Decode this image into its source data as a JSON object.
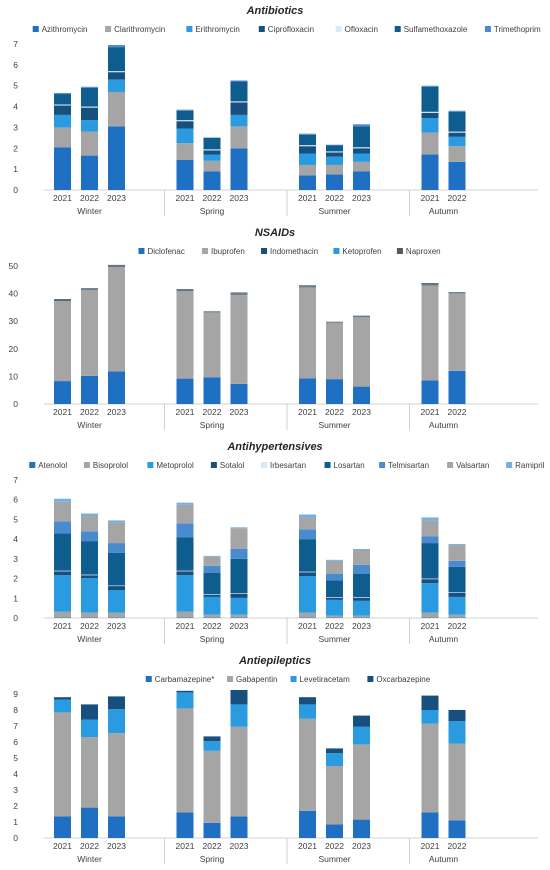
{
  "chart_data": [
    {
      "type": "bar",
      "title": "Antibiotics",
      "ylim": [
        0,
        7
      ],
      "yticks": [
        0,
        1,
        2,
        3,
        4,
        5,
        6,
        7
      ],
      "groups": [
        {
          "label": "Winter",
          "categories": [
            "2021",
            "2022",
            "2023"
          ]
        },
        {
          "label": "Spring",
          "categories": [
            "2021",
            "2022",
            "2023"
          ]
        },
        {
          "label": "Summer",
          "categories": [
            "2021",
            "2022",
            "2023"
          ]
        },
        {
          "label": "Autumn",
          "categories": [
            "2021",
            "2022"
          ]
        }
      ],
      "categories": [
        "2021",
        "2022",
        "2023",
        "2021",
        "2022",
        "2023",
        "2021",
        "2022",
        "2023",
        "2021",
        "2022"
      ],
      "series": [
        {
          "name": "Azithromycin",
          "color": "#1f6fc2",
          "values": [
            2.05,
            1.65,
            3.05,
            1.45,
            0.9,
            2.0,
            0.7,
            0.75,
            0.9,
            1.7,
            1.35
          ]
        },
        {
          "name": "Clarithromycin",
          "color": "#a5a5a5",
          "values": [
            0.95,
            1.15,
            1.65,
            0.8,
            0.5,
            1.05,
            0.5,
            0.45,
            0.45,
            1.05,
            0.75
          ]
        },
        {
          "name": "Erithromycin",
          "color": "#2a9be0",
          "values": [
            0.6,
            0.55,
            0.6,
            0.7,
            0.3,
            0.55,
            0.55,
            0.4,
            0.4,
            0.7,
            0.45
          ]
        },
        {
          "name": "Ciprofloxacin",
          "color": "#174f7f",
          "values": [
            0.45,
            0.6,
            0.35,
            0.35,
            0.2,
            0.6,
            0.35,
            0.2,
            0.25,
            0.25,
            0.2
          ]
        },
        {
          "name": "Ofloxacin",
          "color": "#d6eaf8",
          "values": [
            0.05,
            0.05,
            0.05,
            0.05,
            0.05,
            0.05,
            0.05,
            0.05,
            0.05,
            0.05,
            0.05
          ]
        },
        {
          "name": "Sulfamethoxazole",
          "color": "#0f5d8f",
          "values": [
            0.5,
            0.9,
            1.15,
            0.45,
            0.55,
            0.95,
            0.5,
            0.3,
            1.0,
            1.2,
            0.95
          ]
        },
        {
          "name": "Trimethoprim",
          "color": "#4a8bd0",
          "values": [
            0.05,
            0.05,
            0.1,
            0.05,
            0.02,
            0.05,
            0.05,
            0.02,
            0.1,
            0.05,
            0.05
          ]
        }
      ]
    },
    {
      "type": "bar",
      "title": "NSAIDs",
      "ylim": [
        0,
        50
      ],
      "yticks": [
        0,
        10,
        20,
        30,
        40,
        50
      ],
      "groups": [
        {
          "label": "Winter",
          "categories": [
            "2021",
            "2022",
            "2023"
          ]
        },
        {
          "label": "Spring",
          "categories": [
            "2021",
            "2022",
            "2023"
          ]
        },
        {
          "label": "Summer",
          "categories": [
            "2021",
            "2022",
            "2023"
          ]
        },
        {
          "label": "Autumn",
          "categories": [
            "2021",
            "2022"
          ]
        }
      ],
      "categories": [
        "2021",
        "2022",
        "2023",
        "2021",
        "2022",
        "2023",
        "2021",
        "2022",
        "2023",
        "2021",
        "2022"
      ],
      "series": [
        {
          "name": "Diclofenac",
          "color": "#1f6fc2",
          "values": [
            8.3,
            10.2,
            11.8,
            9.2,
            9.7,
            7.3,
            9.3,
            9.0,
            6.3,
            8.5,
            12.0
          ]
        },
        {
          "name": "Ibuprofen",
          "color": "#a5a5a5",
          "values": [
            29.0,
            31.3,
            38.0,
            31.7,
            23.5,
            32.4,
            33.0,
            20.4,
            25.2,
            34.5,
            28.0
          ]
        },
        {
          "name": "Indomethacin",
          "color": "#174f7f",
          "values": [
            0.2,
            0.2,
            0.2,
            0.2,
            0.1,
            0.2,
            0.2,
            0.1,
            0.1,
            0.2,
            0.1
          ]
        },
        {
          "name": "Ketoprofen",
          "color": "#2a9be0",
          "values": [
            0.1,
            0.1,
            0.1,
            0.1,
            0.1,
            0.1,
            0.1,
            0.1,
            0.1,
            0.1,
            0.1
          ]
        },
        {
          "name": "Naproxen",
          "color": "#595959",
          "values": [
            0.4,
            0.2,
            0.3,
            0.4,
            0.2,
            0.4,
            0.4,
            0.2,
            0.3,
            0.5,
            0.3
          ]
        }
      ]
    },
    {
      "type": "bar",
      "title": "Antihypertensives",
      "ylim": [
        0,
        7
      ],
      "yticks": [
        0,
        1,
        2,
        3,
        4,
        5,
        6,
        7
      ],
      "groups": [
        {
          "label": "Winter",
          "categories": [
            "2021",
            "2022",
            "2023"
          ]
        },
        {
          "label": "Spring",
          "categories": [
            "2021",
            "2022",
            "2023"
          ]
        },
        {
          "label": "Summer",
          "categories": [
            "2021",
            "2022",
            "2023"
          ]
        },
        {
          "label": "Autumn",
          "categories": [
            "2021",
            "2022"
          ]
        }
      ],
      "categories": [
        "2021",
        "2022",
        "2023",
        "2021",
        "2022",
        "2023",
        "2021",
        "2022",
        "2023",
        "2021",
        "2022"
      ],
      "series": [
        {
          "name": "Atenolol",
          "color": "#1f6fc2",
          "values": [
            0.02,
            0.02,
            0.02,
            0.02,
            0.02,
            0.02,
            0.02,
            0.02,
            0.02,
            0.02,
            0.02
          ]
        },
        {
          "name": "Bisoprolol",
          "color": "#a5a5a5",
          "values": [
            0.3,
            0.25,
            0.25,
            0.3,
            0.15,
            0.15,
            0.25,
            0.1,
            0.1,
            0.25,
            0.15
          ]
        },
        {
          "name": "Metoprolol",
          "color": "#2a9be0",
          "values": [
            1.85,
            1.75,
            1.15,
            1.85,
            0.9,
            0.85,
            1.85,
            0.8,
            0.75,
            1.5,
            0.9
          ]
        },
        {
          "name": "Sotalol",
          "color": "#174f7f",
          "values": [
            0.2,
            0.15,
            0.2,
            0.2,
            0.1,
            0.2,
            0.2,
            0.1,
            0.15,
            0.2,
            0.2
          ]
        },
        {
          "name": "Irbesartan",
          "color": "#d6eaf8",
          "values": [
            0.03,
            0.03,
            0.03,
            0.03,
            0.03,
            0.03,
            0.03,
            0.03,
            0.03,
            0.03,
            0.03
          ]
        },
        {
          "name": "Losartan",
          "color": "#0f5d8f",
          "values": [
            1.9,
            1.7,
            1.65,
            1.7,
            1.1,
            1.75,
            1.65,
            0.85,
            1.2,
            1.8,
            1.3
          ]
        },
        {
          "name": "Telmisartan",
          "color": "#4a8bd0",
          "values": [
            0.6,
            0.5,
            0.5,
            0.7,
            0.35,
            0.5,
            0.5,
            0.35,
            0.45,
            0.35,
            0.3
          ]
        },
        {
          "name": "Valsartan",
          "color": "#a5a5a5",
          "values": [
            1.0,
            0.8,
            1.05,
            0.95,
            0.45,
            1.05,
            0.6,
            0.65,
            0.75,
            0.8,
            0.8
          ]
        },
        {
          "name": "Ramipril",
          "color": "#6fb1e8",
          "values": [
            0.15,
            0.1,
            0.1,
            0.1,
            0.05,
            0.05,
            0.15,
            0.05,
            0.05,
            0.15,
            0.05
          ]
        }
      ]
    },
    {
      "type": "bar",
      "title": "Antiepileptics",
      "ylim": [
        0,
        9
      ],
      "yticks": [
        0,
        1,
        2,
        3,
        4,
        5,
        6,
        7,
        8,
        9
      ],
      "groups": [
        {
          "label": "Winter",
          "categories": [
            "2021",
            "2022",
            "2023"
          ]
        },
        {
          "label": "Spring",
          "categories": [
            "2021",
            "2022",
            "2023"
          ]
        },
        {
          "label": "Summer",
          "categories": [
            "2021",
            "2022",
            "2023"
          ]
        },
        {
          "label": "Autumn",
          "categories": [
            "2021",
            "2022"
          ]
        }
      ],
      "categories": [
        "2021",
        "2022",
        "2023",
        "2021",
        "2022",
        "2023",
        "2021",
        "2022",
        "2023",
        "2021",
        "2022"
      ],
      "series": [
        {
          "name": "Carbamazepine*",
          "color": "#1f6fc2",
          "values": [
            1.35,
            1.9,
            1.35,
            1.6,
            0.95,
            1.35,
            1.7,
            0.85,
            1.15,
            1.6,
            1.1
          ]
        },
        {
          "name": "Gabapentin",
          "color": "#a5a5a5",
          "values": [
            6.5,
            4.4,
            5.2,
            6.5,
            4.5,
            5.6,
            5.75,
            3.65,
            4.7,
            5.55,
            4.8
          ]
        },
        {
          "name": "Levetiracetam",
          "color": "#2a9be0",
          "values": [
            0.8,
            1.1,
            1.5,
            1.0,
            0.6,
            1.4,
            0.9,
            0.8,
            1.1,
            0.85,
            1.4
          ]
        },
        {
          "name": "Oxcarbazepine",
          "color": "#174f7f",
          "values": [
            0.15,
            0.95,
            0.8,
            0.1,
            0.3,
            0.9,
            0.45,
            0.3,
            0.7,
            0.9,
            0.7
          ]
        }
      ]
    }
  ]
}
